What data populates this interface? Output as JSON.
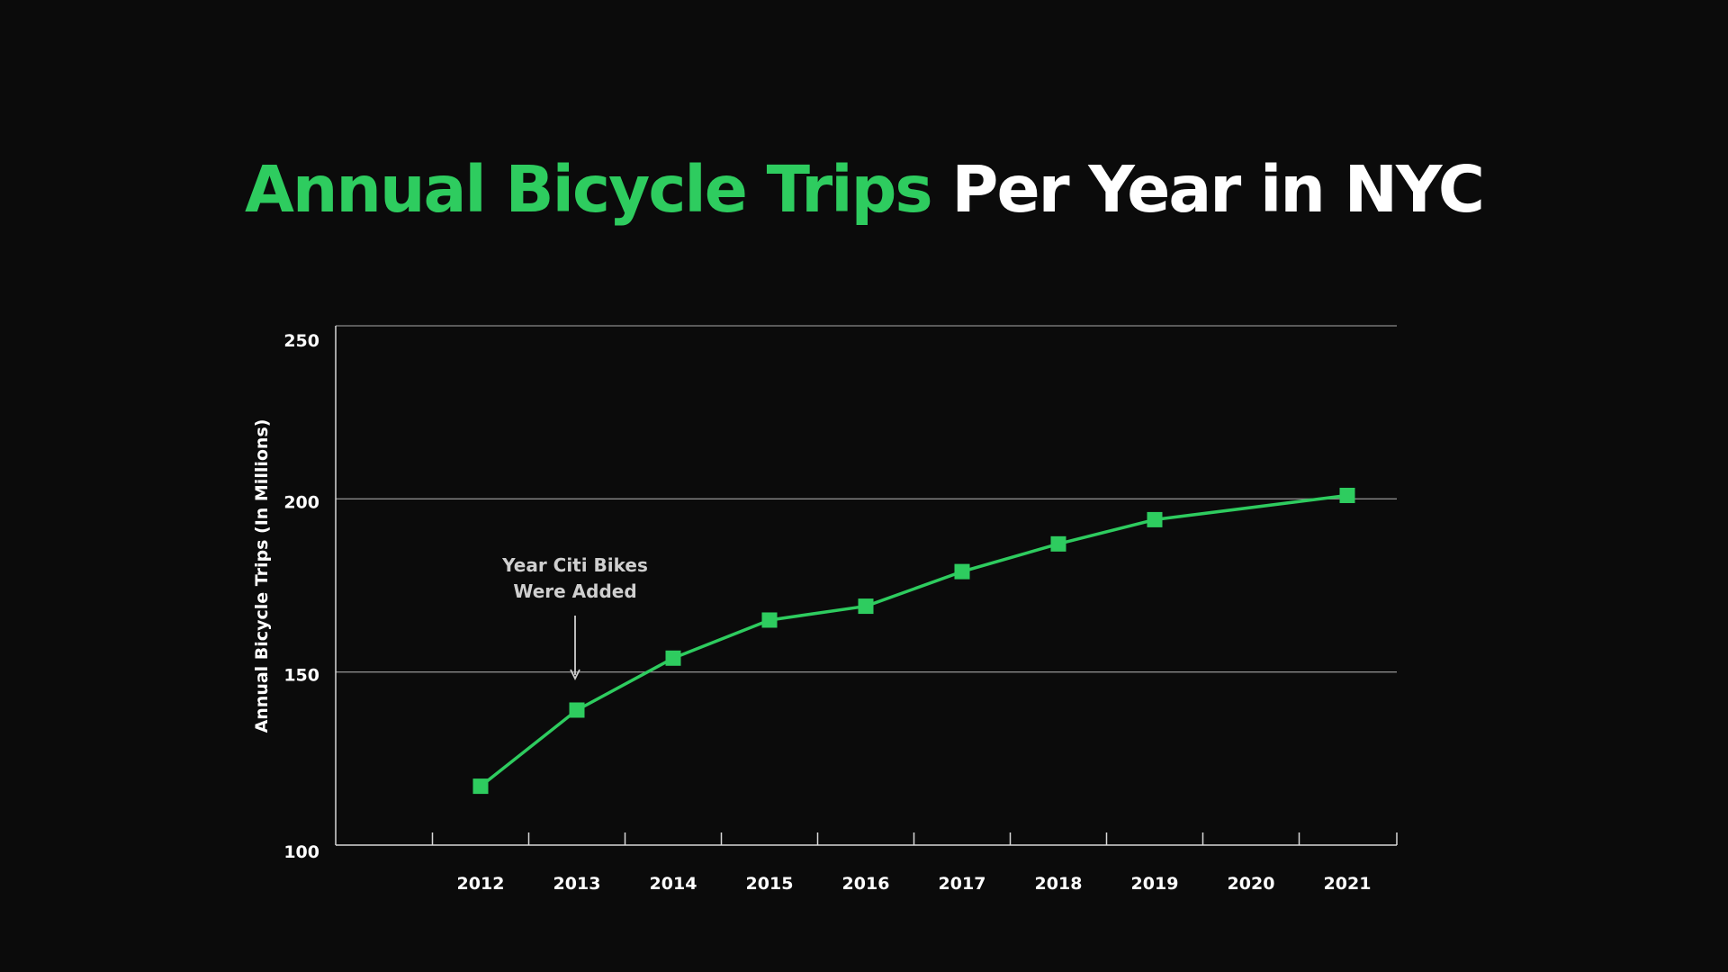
{
  "title": {
    "accent_text": "Annual Bicycle Trips",
    "rest_text": "Per Year in NYC"
  },
  "colors": {
    "background": "#0b0b0b",
    "accent": "#2ecc5f",
    "text": "#ffffff",
    "gridline": "#8a8a8a",
    "annotation": "#cfcfcf"
  },
  "chart_data": {
    "type": "line",
    "title": "Annual Bicycle Trips Per Year in NYC",
    "xlabel": "",
    "ylabel": "Annual Bicycle Trips (In Millions)",
    "x": [
      "2012",
      "2013",
      "2014",
      "2015",
      "2016",
      "2017",
      "2018",
      "2019",
      "2020",
      "2021"
    ],
    "series": [
      {
        "values": [
          117,
          139,
          154,
          165,
          169,
          179,
          187,
          194,
          null,
          201
        ],
        "color": "#2ecc5f",
        "marker": "square"
      }
    ],
    "ylim": [
      100,
      250
    ],
    "yticks": [
      "100",
      "150",
      "200",
      "250"
    ],
    "grid": true,
    "legend": "none",
    "annotations": [
      {
        "text_line1": "Year Citi Bikes",
        "text_line2": "Were Added",
        "x": "2013",
        "arrow": "down"
      }
    ]
  }
}
